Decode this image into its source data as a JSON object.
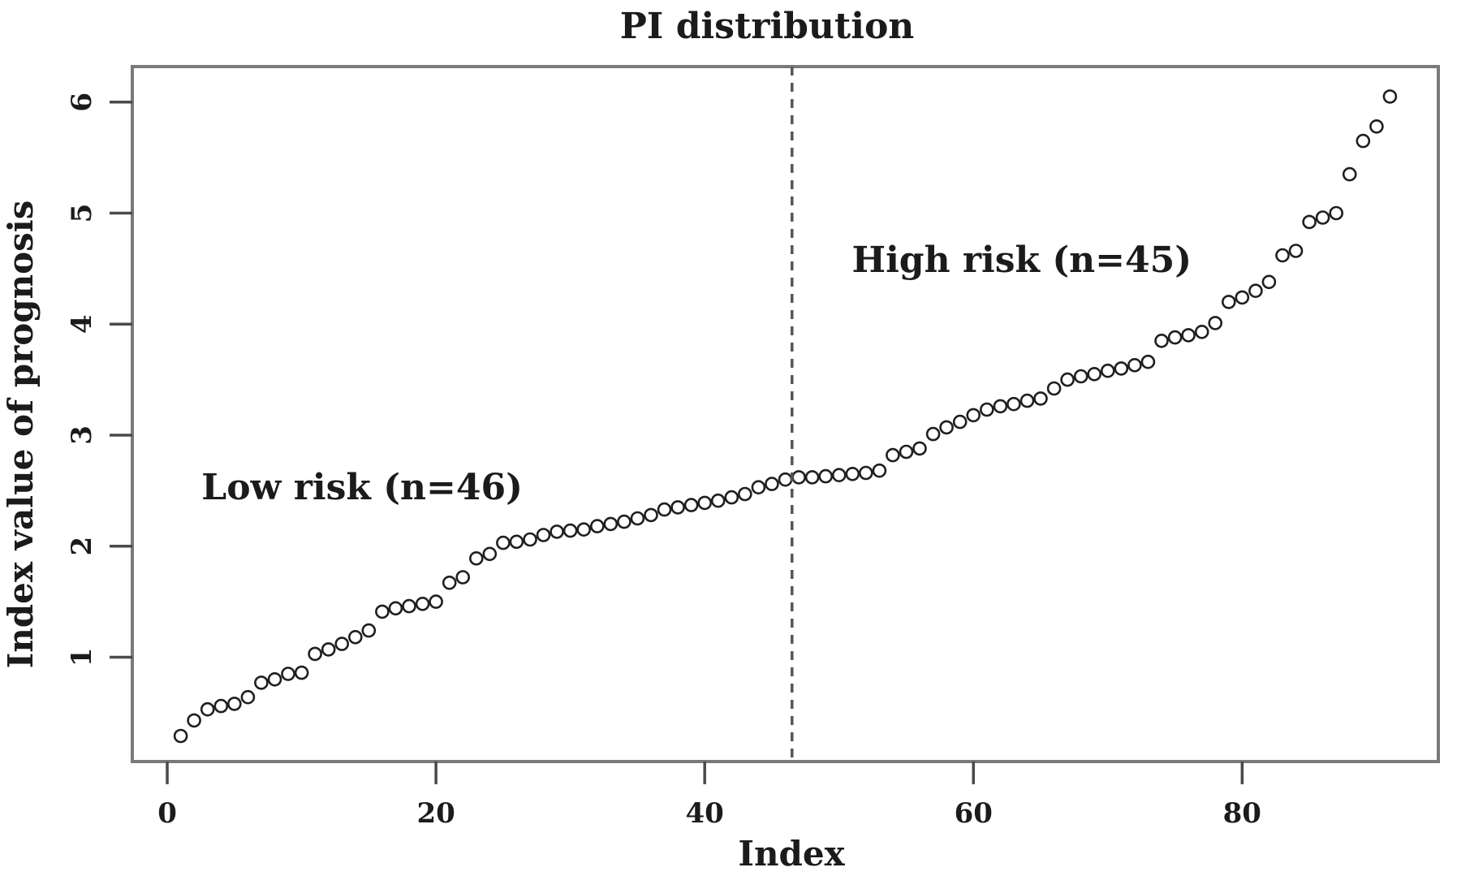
{
  "chart_data": {
    "type": "scatter",
    "title": "PI distribution",
    "xlabel": "Index",
    "ylabel": "Index value of prognosis",
    "x_ticks": [
      0,
      20,
      40,
      60,
      80
    ],
    "y_ticks": [
      1,
      2,
      3,
      4,
      5,
      6
    ],
    "xlim": [
      -2.6,
      94.6
    ],
    "ylim": [
      0.06,
      6.32
    ],
    "grid": false,
    "legend": "none",
    "marker": "open-circle",
    "threshold_line": {
      "x": 46.5,
      "style": "dashed",
      "orientation": "vertical"
    },
    "annotations": [
      {
        "text": "Low risk (n=46)",
        "x": 14.5,
        "y": 2.53
      },
      {
        "text": "High risk (n=45)",
        "x": 63.6,
        "y": 4.58
      }
    ],
    "x": [
      1,
      2,
      3,
      4,
      5,
      6,
      7,
      8,
      9,
      10,
      11,
      12,
      13,
      14,
      15,
      16,
      17,
      18,
      19,
      20,
      21,
      22,
      23,
      24,
      25,
      26,
      27,
      28,
      29,
      30,
      31,
      32,
      33,
      34,
      35,
      36,
      37,
      38,
      39,
      40,
      41,
      42,
      43,
      44,
      45,
      46,
      47,
      48,
      49,
      50,
      51,
      52,
      53,
      54,
      55,
      56,
      57,
      58,
      59,
      60,
      61,
      62,
      63,
      64,
      65,
      66,
      67,
      68,
      69,
      70,
      71,
      72,
      73,
      74,
      75,
      76,
      77,
      78,
      79,
      80,
      81,
      82,
      83,
      84,
      85,
      86,
      87,
      88,
      89,
      90,
      91
    ],
    "values": [
      0.29,
      0.43,
      0.53,
      0.56,
      0.58,
      0.64,
      0.77,
      0.8,
      0.85,
      0.86,
      1.03,
      1.07,
      1.12,
      1.18,
      1.24,
      1.41,
      1.44,
      1.46,
      1.48,
      1.5,
      1.67,
      1.72,
      1.89,
      1.93,
      2.03,
      2.04,
      2.06,
      2.1,
      2.13,
      2.14,
      2.15,
      2.18,
      2.2,
      2.22,
      2.25,
      2.28,
      2.33,
      2.35,
      2.37,
      2.39,
      2.41,
      2.44,
      2.47,
      2.53,
      2.56,
      2.6,
      2.62,
      2.62,
      2.63,
      2.64,
      2.65,
      2.66,
      2.68,
      2.82,
      2.85,
      2.88,
      3.01,
      3.07,
      3.12,
      3.18,
      3.23,
      3.26,
      3.28,
      3.31,
      3.33,
      3.42,
      3.5,
      3.53,
      3.55,
      3.58,
      3.6,
      3.63,
      3.66,
      3.85,
      3.88,
      3.9,
      3.93,
      4.01,
      4.2,
      4.24,
      4.3,
      4.38,
      4.62,
      4.66,
      4.92,
      4.96,
      5.0,
      5.35,
      5.65,
      5.78,
      6.05
    ],
    "colors": {
      "background": "#ffffff",
      "frame": "#7a7a7a",
      "tick": "#4a4a4a",
      "point_stroke": "#1f1f1f",
      "dashed_line": "#565656",
      "text": "#111111"
    }
  }
}
